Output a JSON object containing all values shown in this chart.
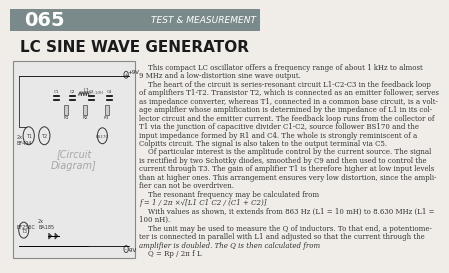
{
  "header_bg_color": "#7a8a8a",
  "header_number": "065",
  "header_category": "TEST & MEASUREMENT",
  "header_number_color": "#ffffff",
  "header_category_color": "#ffffff",
  "title": "LC SINE WAVE GENERATOR",
  "title_color": "#1a1a1a",
  "page_bg_color": "#f0ede8",
  "circuit_bg_color": "#e8e8e8",
  "circuit_border_color": "#888888",
  "body_text_color": "#333333",
  "body_text": [
    "    This compact LC oscillator offers a frequency range of about 1 kHz to almost",
    "9 MHz and a low-distortion sine wave output.",
    "    The heart of the circuit is series-resonant circuit L1-C2-C3 in the feedback loop",
    "of amplifiers T1-T2. Transistor T2, which is connected as an emitter follower, serves",
    "as impedance converter, whereas T1, connected in a common base circuit, is a volt-",
    "age amplifier whose amplification is determined by the impedance of L1 in its col-",
    "lector circuit and the emitter current. The feedback loop runs from the collector of",
    "T1 via the junction of capacitive divider C1-C2, source follower BS170 and the",
    "input impedance formed by R1 and C4. The whole is strongly reminiscent of a",
    "Colpitts circuit. The signal is also taken to the output terminal via C5.",
    "    Of particular interest is the amplitude control by the current source. The signal",
    "is rectified by two Schottky diodes, smoothed by C9 and then used to control the",
    "current through T3. The gain of amplifier T1 is therefore higher at low input levels",
    "than at higher ones. This arrangement ensures very low distortion, since the ampli-",
    "fier can not be overdriven.",
    "    The resonant frequency may be calculated from",
    "f = 1 / 2π ×√[L1 C1 C2 / (C1 + C2)]",
    "    With values as shown, it extends from 863 Hz (L1 = 10 mH) to 8.630 MHz (L1 =",
    "100 nH).",
    "    The unit may be used to measure the Q of inductors. To that end, a potentiome-",
    "ter is connected in parallel with L1 and adjusted so that the current through the",
    "amplifier is doubled. The Q is then calculated from",
    "    Q = Rp / 2π f L"
  ],
  "formula_lines": [
    16,
    21
  ],
  "italic_lines": [
    16,
    21
  ]
}
